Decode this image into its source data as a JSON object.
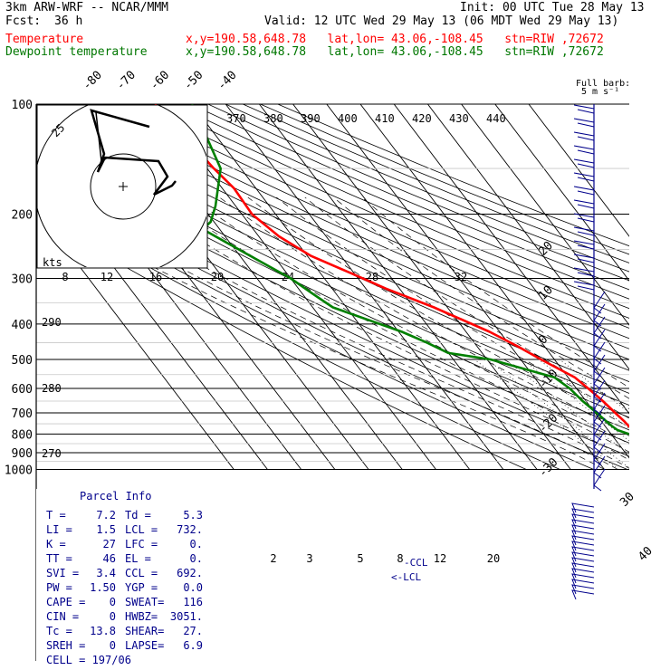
{
  "header": {
    "model": "3km ARW-WRF -- NCAR/MMM",
    "init": "Init: 00 UTC Tue 28 May 13",
    "fcst_label": "Fcst:",
    "fcst_value": "36 h",
    "valid": "Valid: 12 UTC Wed 29 May 13 (06 MDT Wed 29 May 13)",
    "temperature_label": "Temperature",
    "dewpoint_label": "Dewpoint temperature",
    "location": "x,y=190.58,648.78   lat,lon= 43.06,-108.45   stn=RIW ,72672"
  },
  "wind_legend": {
    "line1": "Full barb:",
    "line2": "5 m s⁻¹"
  },
  "hodo_legend": {
    "unit": "kts",
    "ring_label": "25"
  },
  "colors": {
    "temperature": "#ff0000",
    "dewpoint": "#008000",
    "wind": "#00008b",
    "hodograph": "#000000",
    "lcl": "#00008b"
  },
  "chart_data": {
    "type": "skew-T log-p sounding",
    "y_axis": {
      "label_values": [
        "100",
        "200",
        "300",
        "400",
        "500",
        "600",
        "700",
        "800",
        "900",
        "1000"
      ],
      "scale": "log pressure (hPa)"
    },
    "isotherm_labels": [
      "-80",
      "-70",
      "-60",
      "-50",
      "-40",
      "-30",
      "-20",
      "-10",
      "0",
      "10",
      "20",
      "30",
      "40"
    ],
    "theta_e_labels": [
      "370",
      "380",
      "390",
      "400",
      "410",
      "420",
      "430",
      "440"
    ],
    "theta_labels": [
      "290",
      "280",
      "270"
    ],
    "mixing_ratio_upper_labels": [
      "8",
      "12",
      "16",
      "20",
      "24",
      "28",
      "32"
    ],
    "mixing_ratio_lower_labels": [
      "2",
      "3",
      "5",
      "8",
      "12",
      "20"
    ],
    "series": [
      {
        "name": "Temperature",
        "pressure_hPa": [
          100,
          120,
          150,
          170,
          200,
          230,
          260,
          290,
          320,
          360,
          420,
          460,
          500,
          560,
          600,
          650,
          700,
          740,
          760,
          780,
          800
        ],
        "temp_C": [
          -61,
          -59.5,
          -58,
          -56.5,
          -57,
          -54,
          -49,
          -41,
          -34,
          -24,
          -13,
          -8,
          -4,
          2,
          3.5,
          5,
          6,
          6.8,
          7.0,
          7.4,
          7.2
        ]
      },
      {
        "name": "Dewpoint temperature",
        "pressure_hPa": [
          100,
          150,
          190,
          210,
          220,
          260,
          300,
          330,
          350,
          360,
          420,
          450,
          480,
          500,
          560,
          600,
          650,
          700,
          740,
          760,
          780,
          800
        ],
        "dewpoint_C": [
          -50,
          -56,
          -66,
          -71,
          -75,
          -67,
          -60,
          -57,
          -55,
          -54,
          -39,
          -34,
          -30,
          -19,
          -4,
          -2,
          -1,
          0.5,
          1.5,
          2,
          2.8,
          5.3
        ]
      }
    ],
    "cursor_labels": {
      "ccl": "CCL",
      "lcl": "LCL"
    }
  },
  "parcel_info": {
    "title": "Parcel Info",
    "rows": [
      [
        "T   =",
        "7.2",
        "Td =",
        "5.3"
      ],
      [
        "LI  =",
        "1.5",
        "LCL =",
        "732."
      ],
      [
        "K   =",
        "27",
        "LFC =",
        "0."
      ],
      [
        "TT  =",
        "46",
        "EL  =",
        "0."
      ],
      [
        "SVI =",
        "3.4",
        "CCL =",
        "692."
      ],
      [
        "PW  =",
        "1.50",
        "YGP =",
        "0.0"
      ],
      [
        "CAPE =",
        "0",
        "SWEAT=",
        "116"
      ],
      [
        "CIN =",
        "0",
        "HWBZ=",
        "3051."
      ],
      [
        "Tc  =",
        "13.8",
        "SHEAR=",
        "27."
      ],
      [
        "SREH =",
        "0",
        "LAPSE=",
        "6.9"
      ]
    ],
    "cell": "CELL = 197/06"
  }
}
